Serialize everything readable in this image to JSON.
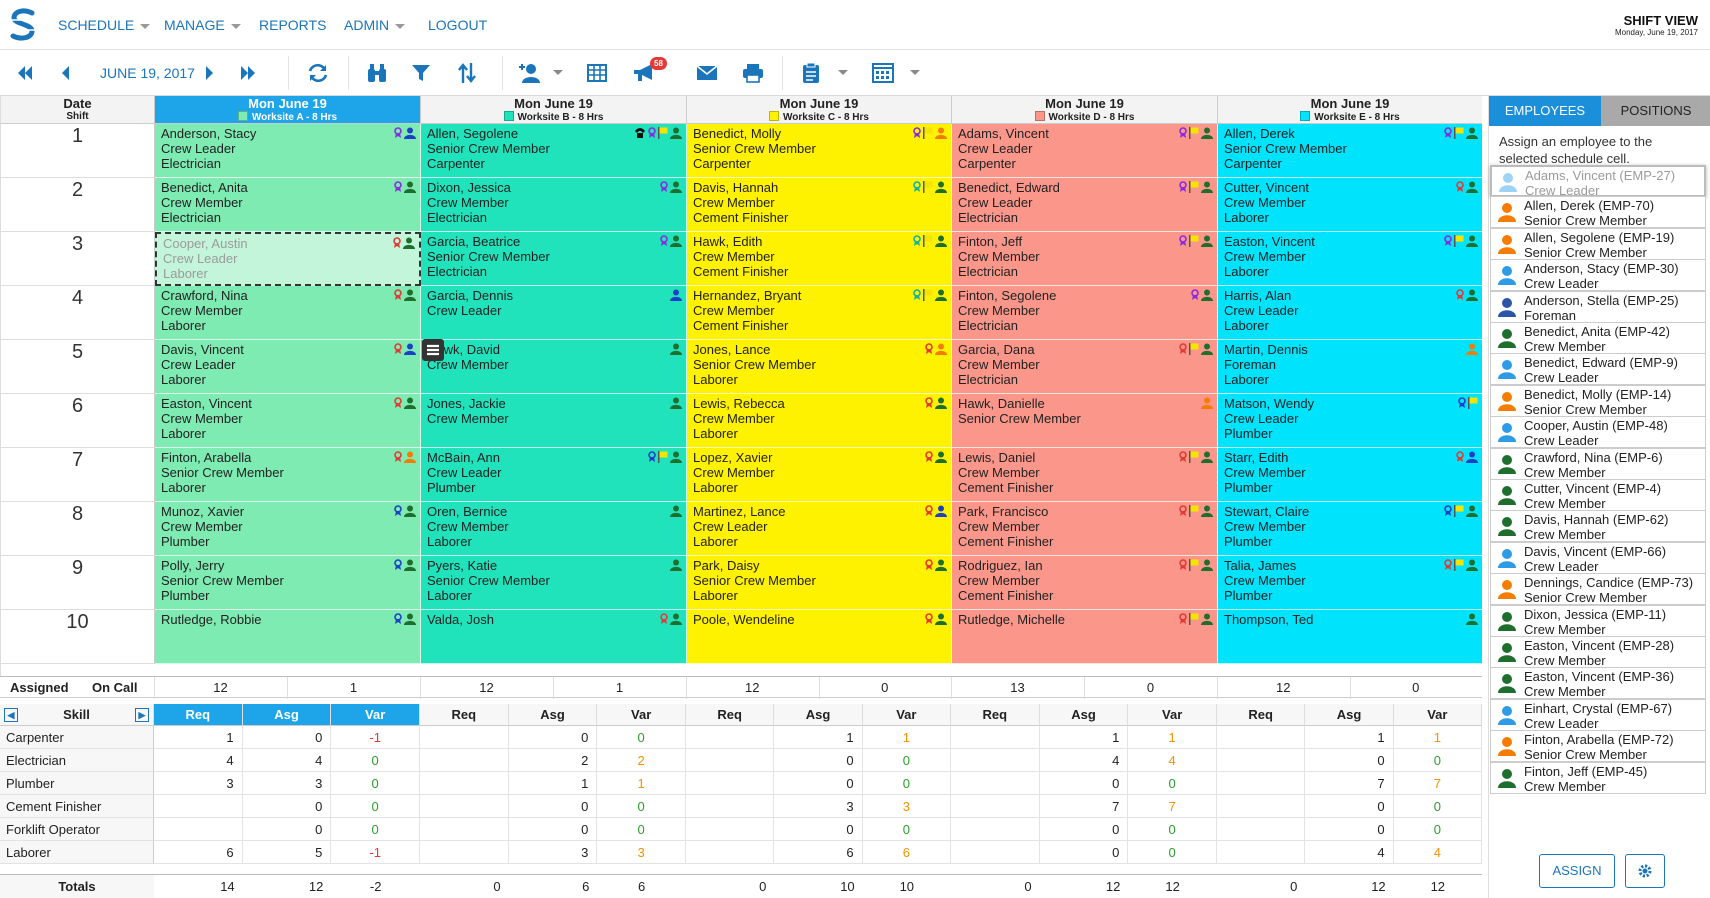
{
  "nav": {
    "items": [
      {
        "label": "SCHEDULE",
        "caret": true
      },
      {
        "label": "MANAGE",
        "caret": true
      },
      {
        "label": "REPORTS",
        "caret": false
      },
      {
        "label": "ADMIN",
        "caret": true
      },
      {
        "label": "LOGOUT",
        "caret": false
      }
    ],
    "view_title": "SHIFT VIEW",
    "view_date": "Monday, June 19, 2017"
  },
  "toolbar": {
    "date": "JUNE 19, 2017",
    "notification_count": "58",
    "icons": [
      "first-icon",
      "prev-icon",
      "next-icon",
      "last-icon",
      "refresh-icon",
      "binoculars-icon",
      "filter-icon",
      "sort-icon",
      "assign-user-icon",
      "table-icon",
      "megaphone-icon",
      "mail-icon",
      "print-icon",
      "clipboard-icon",
      "calendar-grid-icon"
    ]
  },
  "grid": {
    "header_date": "Date",
    "header_shift": "Shift",
    "columns": [
      {
        "date": "Mon June 19",
        "worksite": "Worksite A - 8 Hrs",
        "color": "#7eebb3",
        "swatch": "#7eebb3",
        "selected": true
      },
      {
        "date": "Mon June 19",
        "worksite": "Worksite B - 8 Hrs",
        "color": "#20e3bc",
        "swatch": "#20e3bc",
        "selected": false
      },
      {
        "date": "Mon June 19",
        "worksite": "Worksite C - 8 Hrs",
        "color": "#fff200",
        "swatch": "#fff200",
        "selected": false
      },
      {
        "date": "Mon June 19",
        "worksite": "Worksite D - 8 Hrs",
        "color": "#fb968a",
        "swatch": "#fb968a",
        "selected": false
      },
      {
        "date": "Mon June 19",
        "worksite": "Worksite E - 8 Hrs",
        "color": "#00e3fd",
        "swatch": "#00e3fd",
        "selected": false
      }
    ],
    "rows": [
      "1",
      "2",
      "3",
      "4",
      "5",
      "6",
      "7",
      "8",
      "9",
      "10"
    ],
    "cells": [
      [
        [
          "Anderson, Stacy",
          "Crew Leader",
          "Electrician"
        ],
        [
          "Allen, Segolene",
          "Senior Crew Member",
          "Carpenter"
        ],
        [
          "Benedict, Molly",
          "Senior Crew Member",
          "Carpenter"
        ],
        [
          "Adams, Vincent",
          "Crew Leader",
          "Carpenter"
        ],
        [
          "Allen, Derek",
          "Senior Crew Member",
          "Carpenter"
        ]
      ],
      [
        [
          "Benedict, Anita",
          "Crew Member",
          "Electrician"
        ],
        [
          "Dixon, Jessica",
          "Crew Member",
          "Electrician"
        ],
        [
          "Davis, Hannah",
          "Crew Member",
          "Cement Finisher"
        ],
        [
          "Benedict, Edward",
          "Crew Leader",
          "Electrician"
        ],
        [
          "Cutter, Vincent",
          "Crew Member",
          "Laborer"
        ]
      ],
      [
        [
          "Cooper, Austin",
          "Crew Leader",
          "Laborer"
        ],
        [
          "Garcia, Beatrice",
          "Senior Crew Member",
          "Electrician"
        ],
        [
          "Hawk, Edith",
          "Crew Member",
          "Cement Finisher"
        ],
        [
          "Finton, Jeff",
          "Crew Member",
          "Electrician"
        ],
        [
          "Easton, Vincent",
          "Crew Member",
          "Laborer"
        ]
      ],
      [
        [
          "Crawford, Nina",
          "Crew Member",
          "Laborer"
        ],
        [
          "Garcia, Dennis",
          "Crew Leader",
          ""
        ],
        [
          "Hernandez, Bryant",
          "Crew Member",
          "Cement Finisher"
        ],
        [
          "Finton, Segolene",
          "Crew Member",
          "Electrician"
        ],
        [
          "Harris, Alan",
          "Crew Leader",
          "Laborer"
        ]
      ],
      [
        [
          "Davis, Vincent",
          "Crew Leader",
          "Laborer"
        ],
        [
          "Hawk, David",
          "Crew Member",
          ""
        ],
        [
          "Jones, Lance",
          "Senior Crew Member",
          "Laborer"
        ],
        [
          "Garcia, Dana",
          "Crew Member",
          "Electrician"
        ],
        [
          "Martin, Dennis",
          "Foreman",
          "Laborer"
        ]
      ],
      [
        [
          "Easton, Vincent",
          "Crew Member",
          "Laborer"
        ],
        [
          "Jones, Jackie",
          "Crew Member",
          ""
        ],
        [
          "Lewis, Rebecca",
          "Crew Member",
          "Laborer"
        ],
        [
          "Hawk, Danielle",
          "Senior Crew Member",
          ""
        ],
        [
          "Matson, Wendy",
          "Crew Leader",
          "Plumber"
        ]
      ],
      [
        [
          "Finton, Arabella",
          "Senior Crew Member",
          "Laborer"
        ],
        [
          "McBain, Ann",
          "Crew Leader",
          "Plumber"
        ],
        [
          "Lopez, Xavier",
          "Crew Member",
          "Laborer"
        ],
        [
          "Lewis, Daniel",
          "Crew Member",
          "Cement Finisher"
        ],
        [
          "Starr, Edith",
          "Crew Member",
          "Plumber"
        ]
      ],
      [
        [
          "Munoz, Xavier",
          "Crew Member",
          "Plumber"
        ],
        [
          "Oren, Bernice",
          "Crew Member",
          "Laborer"
        ],
        [
          "Martinez, Lance",
          "Crew Leader",
          "Laborer"
        ],
        [
          "Park, Francisco",
          "Crew Member",
          "Cement Finisher"
        ],
        [
          "Stewart, Claire",
          "Crew Member",
          "Plumber"
        ]
      ],
      [
        [
          "Polly, Jerry",
          "Senior Crew Member",
          "Plumber"
        ],
        [
          "Pyers, Katie",
          "Senior Crew Member",
          "Laborer"
        ],
        [
          "Park, Daisy",
          "Senior Crew Member",
          "Laborer"
        ],
        [
          "Rodriguez, Ian",
          "Crew Member",
          "Cement Finisher"
        ],
        [
          "Talia, James",
          "Crew Member",
          "Plumber"
        ]
      ],
      [
        [
          "Rutledge, Robbie",
          "",
          ""
        ],
        [
          "Valda, Josh",
          "",
          ""
        ],
        [
          "Poole, Wendeline",
          "",
          ""
        ],
        [
          "Rutledge, Michelle",
          "",
          ""
        ],
        [
          "Thompson, Ted",
          "",
          ""
        ]
      ]
    ],
    "cell_icons": [
      [
        [
          "ribbon-purple",
          "person-blue"
        ],
        [
          "phone",
          "ribbon-purple",
          "flag-yellow",
          "person-green"
        ],
        [
          "ribbon-purple",
          "flag-yellow",
          "person-orange"
        ],
        [
          "ribbon-purple",
          "flag-yellow",
          "person-green"
        ],
        [
          "ribbon-purple",
          "flag-yellow",
          "person-green"
        ]
      ],
      [
        [
          "ribbon-purple",
          "person-green"
        ],
        [
          "ribbon-purple",
          "person-green"
        ],
        [
          "ribbon-teal",
          "flag-yellow",
          "person-green"
        ],
        [
          "ribbon-purple",
          "flag-yellow",
          "person-green"
        ],
        [
          "ribbon-red",
          "person-green"
        ]
      ],
      [
        [
          "ribbon-red",
          "person-green"
        ],
        [
          "ribbon-purple",
          "person-green"
        ],
        [
          "ribbon-teal",
          "flag-yellow",
          "person-green"
        ],
        [
          "ribbon-purple",
          "flag-yellow",
          "person-green"
        ],
        [
          "ribbon-purple",
          "flag-yellow",
          "person-green"
        ]
      ],
      [
        [
          "ribbon-red",
          "person-green"
        ],
        [
          "person-blue"
        ],
        [
          "ribbon-teal",
          "flag-yellow",
          "person-green"
        ],
        [
          "ribbon-purple",
          "person-green"
        ],
        [
          "ribbon-red",
          "person-green"
        ]
      ],
      [
        [
          "ribbon-red",
          "person-blue"
        ],
        [
          "person-green"
        ],
        [
          "ribbon-red",
          "person-orange"
        ],
        [
          "ribbon-red",
          "flag-yellow",
          "person-green"
        ],
        [
          "person-orange"
        ]
      ],
      [
        [
          "ribbon-red",
          "person-green"
        ],
        [
          "person-green"
        ],
        [
          "ribbon-red",
          "person-green"
        ],
        [
          "person-orange"
        ],
        [
          "ribbon-blue",
          "flag-yellow"
        ]
      ],
      [
        [
          "ribbon-red",
          "person-orange"
        ],
        [
          "ribbon-blue",
          "flag-yellow",
          "person-green"
        ],
        [
          "ribbon-red",
          "person-green"
        ],
        [
          "ribbon-red",
          "flag-yellow",
          "person-green"
        ],
        [
          "ribbon-red",
          "person-blue"
        ]
      ],
      [
        [
          "ribbon-blue",
          "person-green"
        ],
        [
          "person-green"
        ],
        [
          "ribbon-red",
          "person-blue"
        ],
        [
          "ribbon-red",
          "flag-yellow",
          "person-green"
        ],
        [
          "ribbon-blue",
          "flag-yellow",
          "person-green"
        ]
      ],
      [
        [
          "ribbon-blue",
          "person-green"
        ],
        [
          "person-green"
        ],
        [
          "ribbon-red",
          "person-green"
        ],
        [
          "ribbon-red",
          "flag-yellow",
          "person-green"
        ],
        [
          "ribbon-red",
          "flag-yellow",
          "person-green"
        ]
      ],
      [
        [
          "ribbon-blue",
          "person-green"
        ],
        [
          "ribbon-red",
          "person-green"
        ],
        [
          "ribbon-red",
          "person-green"
        ],
        [
          "ribbon-red",
          "flag-yellow",
          "person-green"
        ],
        [
          "person-green"
        ]
      ]
    ]
  },
  "assigned_row": {
    "label_assigned": "Assigned",
    "label_oncall": "On Call",
    "assigned": [
      "12",
      "12",
      "12",
      "13",
      "12"
    ],
    "oncall": [
      "1",
      "1",
      "0",
      "0",
      "0"
    ]
  },
  "skill_table": {
    "header": "Skill",
    "col_labels": [
      "Req",
      "Asg",
      "Var"
    ],
    "skills": [
      "Carpenter",
      "Electrician",
      "Plumber",
      "Cement Finisher",
      "Forklift Operator",
      "Laborer"
    ],
    "values": [
      [
        [
          "1",
          "0",
          "-1"
        ],
        [
          "",
          "0",
          "0"
        ],
        [
          "",
          "1",
          "1"
        ],
        [
          "",
          "1",
          "1"
        ],
        [
          "",
          "1",
          "1"
        ]
      ],
      [
        [
          "4",
          "4",
          "0"
        ],
        [
          "",
          "2",
          "2"
        ],
        [
          "",
          "0",
          "0"
        ],
        [
          "",
          "4",
          "4"
        ],
        [
          "",
          "0",
          "0"
        ]
      ],
      [
        [
          "3",
          "3",
          "0"
        ],
        [
          "",
          "1",
          "1"
        ],
        [
          "",
          "0",
          "0"
        ],
        [
          "",
          "0",
          "0"
        ],
        [
          "",
          "7",
          "7"
        ]
      ],
      [
        [
          "",
          "0",
          "0"
        ],
        [
          "",
          "0",
          "0"
        ],
        [
          "",
          "3",
          "3"
        ],
        [
          "",
          "7",
          "7"
        ],
        [
          "",
          "0",
          "0"
        ]
      ],
      [
        [
          "",
          "0",
          "0"
        ],
        [
          "",
          "0",
          "0"
        ],
        [
          "",
          "0",
          "0"
        ],
        [
          "",
          "0",
          "0"
        ],
        [
          "",
          "0",
          "0"
        ]
      ],
      [
        [
          "6",
          "5",
          "-1"
        ],
        [
          "",
          "3",
          "3"
        ],
        [
          "",
          "6",
          "6"
        ],
        [
          "",
          "0",
          "0"
        ],
        [
          "",
          "4",
          "4"
        ]
      ]
    ],
    "totals_label": "Totals",
    "totals": [
      [
        "14",
        "12",
        "-2"
      ],
      [
        "0",
        "6",
        "6"
      ],
      [
        "0",
        "10",
        "10"
      ],
      [
        "0",
        "12",
        "12"
      ],
      [
        "0",
        "12",
        "12"
      ]
    ]
  },
  "panel": {
    "tab_employees": "EMPLOYEES",
    "tab_positions": "POSITIONS",
    "instructions": "Assign an employee to the selected schedule cell.",
    "employees": [
      {
        "name": "Adams, Vincent (EMP-27)",
        "role": "Crew Leader",
        "color": "#9fd3f5",
        "ghost": true
      },
      {
        "name": "Allen, Derek (EMP-70)",
        "role": "Senior Crew Member",
        "color": "#f57c00",
        "ghost": false
      },
      {
        "name": "Allen, Segolene (EMP-19)",
        "role": "Senior Crew Member",
        "color": "#f57c00",
        "ghost": false
      },
      {
        "name": "Anderson, Stacy (EMP-30)",
        "role": "Crew Leader",
        "color": "#2d9be5",
        "ghost": false
      },
      {
        "name": "Anderson, Stella (EMP-25)",
        "role": "Foreman",
        "color": "#2c55a8",
        "ghost": false
      },
      {
        "name": "Benedict, Anita (EMP-42)",
        "role": "Crew Member",
        "color": "#1e6e2e",
        "ghost": false
      },
      {
        "name": "Benedict, Edward (EMP-9)",
        "role": "Crew Leader",
        "color": "#2d9be5",
        "ghost": false
      },
      {
        "name": "Benedict, Molly (EMP-14)",
        "role": "Senior Crew Member",
        "color": "#f57c00",
        "ghost": false
      },
      {
        "name": "Cooper, Austin (EMP-48)",
        "role": "Crew Leader",
        "color": "#2d9be5",
        "ghost": false
      },
      {
        "name": "Crawford, Nina (EMP-6)",
        "role": "Crew Member",
        "color": "#1e6e2e",
        "ghost": false
      },
      {
        "name": "Cutter, Vincent (EMP-4)",
        "role": "Crew Member",
        "color": "#1e6e2e",
        "ghost": false
      },
      {
        "name": "Davis, Hannah (EMP-62)",
        "role": "Crew Member",
        "color": "#1e6e2e",
        "ghost": false
      },
      {
        "name": "Davis, Vincent (EMP-66)",
        "role": "Crew Leader",
        "color": "#2d9be5",
        "ghost": false
      },
      {
        "name": "Dennings, Candice (EMP-73)",
        "role": "Senior Crew Member",
        "color": "#f57c00",
        "ghost": false
      },
      {
        "name": "Dixon, Jessica (EMP-11)",
        "role": "Crew Member",
        "color": "#1e6e2e",
        "ghost": false
      },
      {
        "name": "Easton, Vincent (EMP-28)",
        "role": "Crew Member",
        "color": "#1e6e2e",
        "ghost": false
      },
      {
        "name": "Easton, Vincent (EMP-36)",
        "role": "Crew Member",
        "color": "#1e6e2e",
        "ghost": false
      },
      {
        "name": "Einhart, Crystal (EMP-67)",
        "role": "Crew Leader",
        "color": "#2d9be5",
        "ghost": false
      },
      {
        "name": "Finton, Arabella (EMP-72)",
        "role": "Senior Crew Member",
        "color": "#f57c00",
        "ghost": false
      },
      {
        "name": "Finton, Jeff (EMP-45)",
        "role": "Crew Member",
        "color": "#1e6e2e",
        "ghost": false
      }
    ],
    "assign_label": "ASSIGN"
  },
  "colors": {
    "brand": "#1b75bb",
    "selected_header": "#1ea4e8",
    "var_negative": "#e53935",
    "var_positive": "#f29300",
    "var_zero": "#2e9e2e"
  }
}
